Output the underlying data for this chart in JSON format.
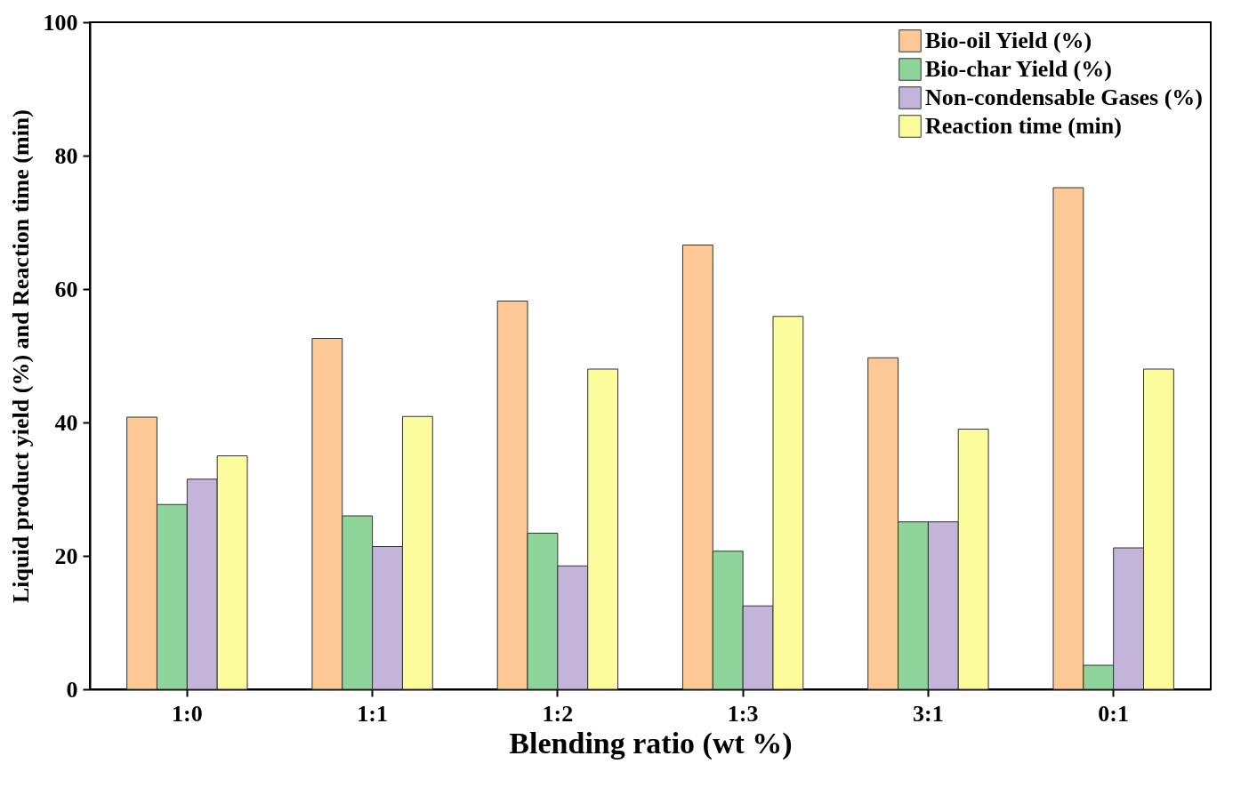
{
  "chart_data": {
    "type": "bar",
    "xlabel": "Blending ratio (wt %)",
    "ylabel": "Liquid product yield (%) and Reaction time (min)",
    "categories": [
      "1:0",
      "1:1",
      "1:2",
      "1:3",
      "3:1",
      "0:1"
    ],
    "series": [
      {
        "name": "Bio-oil Yield (%)",
        "color": "#fcc896",
        "values": [
          40.8,
          52.6,
          58.2,
          66.6,
          49.7,
          75.2
        ]
      },
      {
        "name": "Bio-char Yield (%)",
        "color": "#8fd49a",
        "values": [
          27.7,
          26.0,
          23.4,
          20.7,
          25.1,
          3.6
        ]
      },
      {
        "name": "Non-condensable Gases (%)",
        "color": "#c3b4d9",
        "values": [
          31.5,
          21.4,
          18.5,
          12.5,
          25.1,
          21.2
        ]
      },
      {
        "name": "Reaction time (min)",
        "color": "#fcfc9c",
        "values": [
          35.0,
          40.9,
          48.0,
          55.9,
          39.0,
          48.0
        ]
      }
    ],
    "ylim": [
      0,
      100
    ],
    "yticks": [
      0,
      20,
      40,
      60,
      80,
      100
    ],
    "grid": false,
    "legend": "top right"
  }
}
